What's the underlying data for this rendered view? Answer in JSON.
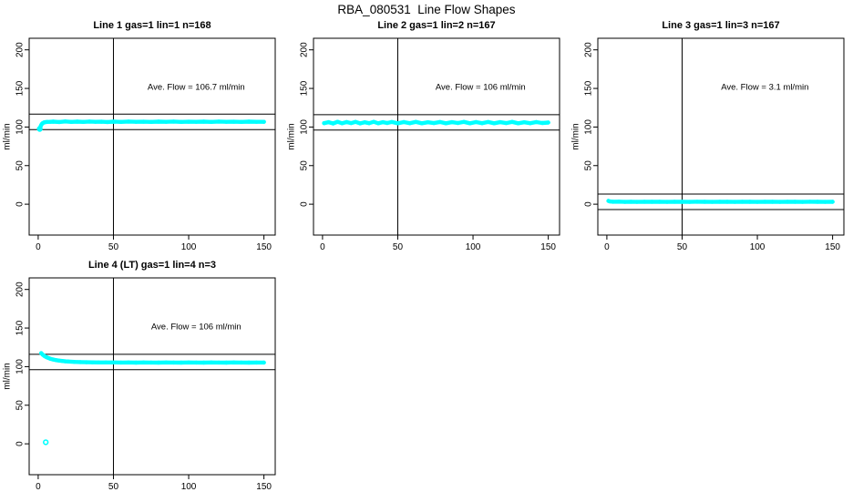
{
  "figure_title": "RBA_080531  Line Flow Shapes",
  "colors": {
    "points": "#00FFFF",
    "axis_and_lines": "#000000",
    "background": "#FFFFFF",
    "text": "#000000"
  },
  "chart_data": [
    {
      "type": "scatter",
      "title": "Line 1 gas=1 lin=1 n=168",
      "n": 168,
      "annotation": "Ave. Flow =  106.7  ml/min",
      "ave_flow": 106.7,
      "annotation_xy": [
        105,
        152
      ],
      "xlabel": "",
      "ylabel": "ml/min",
      "xlim": [
        -6,
        157.5
      ],
      "ylim": [
        -40,
        215
      ],
      "xticks": [
        0,
        50,
        100,
        150
      ],
      "yticks": [
        0,
        50,
        100,
        150,
        200
      ],
      "vline_x": 50,
      "ref_lines_y": [
        96.7,
        116.7
      ],
      "points": [
        [
          1,
          98
        ],
        [
          1.5,
          100.5
        ],
        [
          2,
          102.5
        ],
        [
          2.5,
          104
        ],
        [
          3,
          105
        ],
        [
          4,
          106
        ],
        [
          5,
          106.4
        ],
        [
          6,
          106.6
        ],
        [
          8,
          106.8
        ],
        [
          10,
          107
        ],
        [
          14,
          106.5
        ],
        [
          18,
          107.2
        ],
        [
          22,
          106.6
        ],
        [
          26,
          107
        ],
        [
          30,
          106.6
        ],
        [
          34,
          107.1
        ],
        [
          38,
          106.7
        ],
        [
          42,
          106.9
        ],
        [
          46,
          106.5
        ],
        [
          50,
          107
        ],
        [
          55,
          106.6
        ],
        [
          60,
          107.1
        ],
        [
          65,
          106.7
        ],
        [
          70,
          106.9
        ],
        [
          75,
          106.6
        ],
        [
          80,
          107
        ],
        [
          85,
          106.7
        ],
        [
          90,
          107.1
        ],
        [
          95,
          106.6
        ],
        [
          100,
          106.9
        ],
        [
          105,
          106.7
        ],
        [
          110,
          107
        ],
        [
          115,
          106.6
        ],
        [
          120,
          107.1
        ],
        [
          125,
          106.7
        ],
        [
          130,
          106.9
        ],
        [
          135,
          106.6
        ],
        [
          140,
          107
        ],
        [
          145,
          106.7
        ],
        [
          150,
          106.8
        ]
      ],
      "outliers": [
        [
          1,
          97.5
        ]
      ]
    },
    {
      "type": "scatter",
      "title": "Line 2 gas=1 lin=2 n=167",
      "n": 167,
      "annotation": "Ave. Flow =  106  ml/min",
      "ave_flow": 106,
      "annotation_xy": [
        105,
        152
      ],
      "xlabel": "",
      "ylabel": "ml/min",
      "xlim": [
        -6,
        157.5
      ],
      "ylim": [
        -40,
        215
      ],
      "xticks": [
        0,
        50,
        100,
        150
      ],
      "yticks": [
        0,
        50,
        100,
        150,
        200
      ],
      "vline_x": 50,
      "ref_lines_y": [
        96,
        116
      ],
      "points": [
        [
          1,
          105
        ],
        [
          4,
          106.3
        ],
        [
          7,
          104.6
        ],
        [
          10,
          106.8
        ],
        [
          13,
          104.9
        ],
        [
          16,
          106.4
        ],
        [
          19,
          105.1
        ],
        [
          22,
          106.6
        ],
        [
          25,
          104.7
        ],
        [
          28,
          106.2
        ],
        [
          31,
          105
        ],
        [
          34,
          106.7
        ],
        [
          37,
          104.8
        ],
        [
          40,
          106.3
        ],
        [
          43,
          105.2
        ],
        [
          46,
          106.5
        ],
        [
          50,
          104.9
        ],
        [
          54,
          106.4
        ],
        [
          58,
          105
        ],
        [
          62,
          106.6
        ],
        [
          66,
          104.8
        ],
        [
          70,
          106.2
        ],
        [
          74,
          105.1
        ],
        [
          78,
          106.5
        ],
        [
          82,
          104.9
        ],
        [
          86,
          106.3
        ],
        [
          90,
          105.2
        ],
        [
          94,
          106.6
        ],
        [
          98,
          104.8
        ],
        [
          102,
          106.4
        ],
        [
          106,
          105
        ],
        [
          110,
          106.5
        ],
        [
          114,
          104.9
        ],
        [
          118,
          106.3
        ],
        [
          122,
          105.1
        ],
        [
          126,
          106.6
        ],
        [
          130,
          104.8
        ],
        [
          134,
          106.2
        ],
        [
          138,
          105
        ],
        [
          142,
          106.4
        ],
        [
          146,
          105.2
        ],
        [
          150,
          105.8
        ]
      ],
      "outliers": []
    },
    {
      "type": "scatter",
      "title": "Line 3 gas=1 lin=3 n=167",
      "n": 167,
      "annotation": "Ave. Flow =  3.1  ml/min",
      "ave_flow": 3.1,
      "annotation_xy": [
        105,
        152
      ],
      "xlabel": "",
      "ylabel": "ml/min",
      "xlim": [
        -6,
        157.5
      ],
      "ylim": [
        -40,
        215
      ],
      "xticks": [
        0,
        50,
        100,
        150
      ],
      "yticks": [
        0,
        50,
        100,
        150,
        200
      ],
      "vline_x": 50,
      "ref_lines_y": [
        -6.9,
        13.1
      ],
      "points": [
        [
          1,
          4.3
        ],
        [
          2,
          3.6
        ],
        [
          4,
          3.2
        ],
        [
          8,
          3.3
        ],
        [
          12,
          3
        ],
        [
          16,
          3.2
        ],
        [
          20,
          3
        ],
        [
          25,
          3.2
        ],
        [
          30,
          3.1
        ],
        [
          35,
          3.2
        ],
        [
          40,
          3
        ],
        [
          45,
          3.2
        ],
        [
          50,
          3.1
        ],
        [
          55,
          3
        ],
        [
          60,
          3.2
        ],
        [
          65,
          3.1
        ],
        [
          70,
          3
        ],
        [
          75,
          3.2
        ],
        [
          80,
          3.1
        ],
        [
          85,
          3
        ],
        [
          90,
          3.2
        ],
        [
          95,
          3.1
        ],
        [
          100,
          3
        ],
        [
          105,
          3.2
        ],
        [
          110,
          3.1
        ],
        [
          115,
          3
        ],
        [
          120,
          3.2
        ],
        [
          125,
          3.1
        ],
        [
          130,
          3
        ],
        [
          135,
          3.2
        ],
        [
          140,
          3.1
        ],
        [
          145,
          3
        ],
        [
          150,
          3.1
        ]
      ],
      "outliers": []
    },
    {
      "type": "scatter",
      "title": "Line 4 (LT) gas=1 lin=4 n=3",
      "n": 3,
      "annotation": "Ave. Flow =  106  ml/min",
      "ave_flow": 106,
      "annotation_xy": [
        105,
        152
      ],
      "xlabel": "",
      "ylabel": "ml/min",
      "xlim": [
        -6,
        157.5
      ],
      "ylim": [
        -40,
        215
      ],
      "xticks": [
        0,
        50,
        100,
        150
      ],
      "yticks": [
        0,
        50,
        100,
        150,
        200
      ],
      "vline_x": 50,
      "ref_lines_y": [
        96,
        116
      ],
      "points": [
        [
          2,
          117.5
        ],
        [
          3,
          115.5
        ],
        [
          4,
          114
        ],
        [
          5,
          112.8
        ],
        [
          6,
          111.8
        ],
        [
          7,
          111
        ],
        [
          8,
          110.3
        ],
        [
          10,
          109.2
        ],
        [
          12,
          108.4
        ],
        [
          14,
          107.8
        ],
        [
          16,
          107.3
        ],
        [
          18,
          106.9
        ],
        [
          20,
          106.6
        ],
        [
          24,
          106.2
        ],
        [
          28,
          105.9
        ],
        [
          32,
          105.7
        ],
        [
          36,
          105.6
        ],
        [
          40,
          105.5
        ],
        [
          45,
          105.4
        ],
        [
          50,
          105.4
        ],
        [
          55,
          105.3
        ],
        [
          60,
          105.4
        ],
        [
          65,
          105.2
        ],
        [
          70,
          105.4
        ],
        [
          75,
          105.3
        ],
        [
          80,
          105.2
        ],
        [
          85,
          105.4
        ],
        [
          90,
          105.3
        ],
        [
          95,
          105.2
        ],
        [
          100,
          105.4
        ],
        [
          105,
          105.3
        ],
        [
          110,
          105.2
        ],
        [
          115,
          105.4
        ],
        [
          120,
          105.3
        ],
        [
          125,
          105.2
        ],
        [
          130,
          105.4
        ],
        [
          135,
          105.3
        ],
        [
          140,
          105.2
        ],
        [
          145,
          105.3
        ],
        [
          150,
          105.3
        ]
      ],
      "outliers": [
        [
          5,
          2
        ]
      ]
    }
  ]
}
